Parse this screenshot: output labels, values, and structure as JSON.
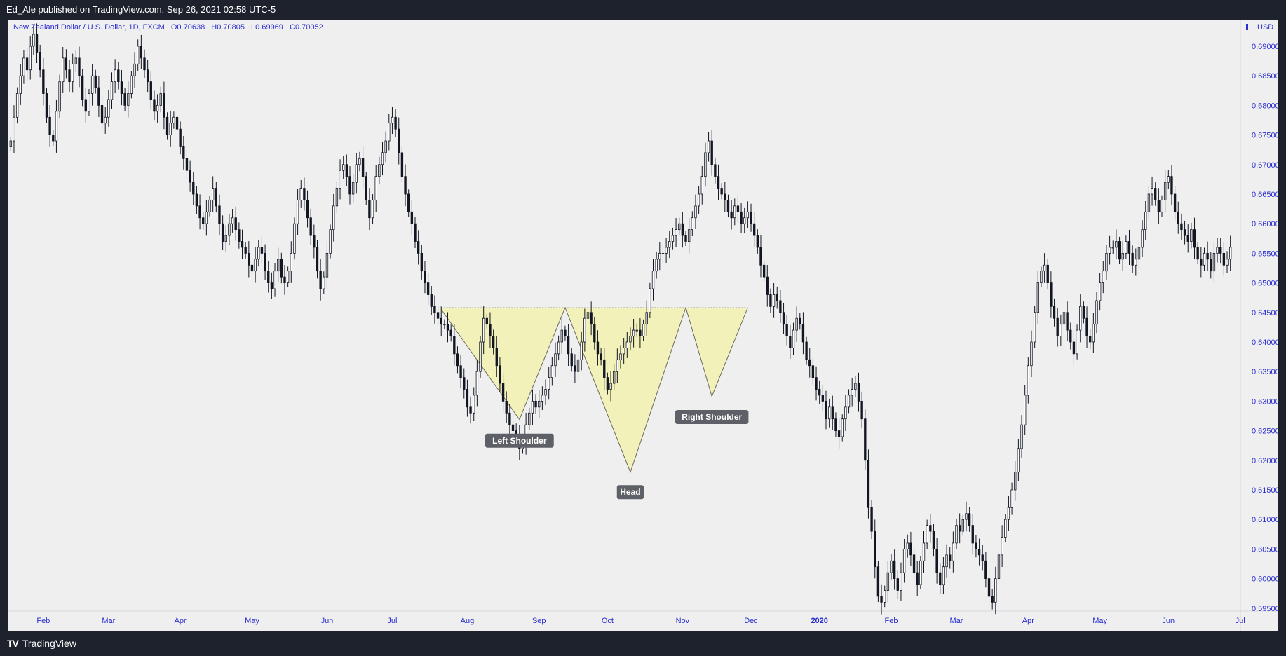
{
  "header": {
    "published": "Ed_Ale published on TradingView.com, Sep 26, 2021 02:58 UTC-5"
  },
  "legend": {
    "symbol": "New Zealand Dollar / U.S. Dollar, 1D, FXCM",
    "o_label": "O",
    "o_value": "0.70638",
    "h_label": "H",
    "h_value": "0.70805",
    "l_label": "L",
    "l_value": "0.69969",
    "c_label": "C",
    "c_value": "0.70052"
  },
  "currency": "USD",
  "footer": {
    "brand": "TradingView",
    "logo": "TV"
  },
  "colors": {
    "candle": "#131722",
    "pattern_fill": "#f2f1b9",
    "pattern_stroke": "#6b6b5a",
    "axis_text": "#2a2ecd",
    "label_bg": "#5d6066"
  },
  "chart_data": {
    "type": "candlestick",
    "instrument": "NZDUSD",
    "timeframe": "1D",
    "ylim": [
      0.5945,
      0.6945
    ],
    "y_ticks": [
      "0.69000",
      "0.68500",
      "0.68000",
      "0.67500",
      "0.67000",
      "0.66500",
      "0.66000",
      "0.65500",
      "0.65000",
      "0.64500",
      "0.64000",
      "0.63500",
      "0.63000",
      "0.62500",
      "0.62000",
      "0.61500",
      "0.61000",
      "0.60500",
      "0.60000",
      "0.59500"
    ],
    "x_ticks": [
      {
        "label": "Feb",
        "i": 10,
        "bold": false
      },
      {
        "label": "Mar",
        "i": 30,
        "bold": false
      },
      {
        "label": "Apr",
        "i": 52,
        "bold": false
      },
      {
        "label": "May",
        "i": 74,
        "bold": false
      },
      {
        "label": "Jun",
        "i": 97,
        "bold": false
      },
      {
        "label": "Jul",
        "i": 117,
        "bold": false
      },
      {
        "label": "Aug",
        "i": 140,
        "bold": false
      },
      {
        "label": "Sep",
        "i": 162,
        "bold": false
      },
      {
        "label": "Oct",
        "i": 183,
        "bold": false
      },
      {
        "label": "Nov",
        "i": 206,
        "bold": false
      },
      {
        "label": "Dec",
        "i": 227,
        "bold": false
      },
      {
        "label": "2020",
        "i": 248,
        "bold": true
      },
      {
        "label": "Feb",
        "i": 270,
        "bold": false
      },
      {
        "label": "Mar",
        "i": 290,
        "bold": false
      },
      {
        "label": "Apr",
        "i": 312,
        "bold": false
      },
      {
        "label": "May",
        "i": 334,
        "bold": false
      },
      {
        "label": "Jun",
        "i": 355,
        "bold": false
      },
      {
        "label": "Jul",
        "i": 377,
        "bold": false
      },
      {
        "label": "Aug",
        "i": 400,
        "bold": false
      }
    ],
    "closes": [
      0.674,
      0.678,
      0.682,
      0.685,
      0.688,
      0.686,
      0.69,
      0.692,
      0.689,
      0.686,
      0.682,
      0.678,
      0.675,
      0.674,
      0.679,
      0.684,
      0.688,
      0.686,
      0.684,
      0.687,
      0.688,
      0.685,
      0.681,
      0.679,
      0.682,
      0.685,
      0.683,
      0.68,
      0.677,
      0.678,
      0.681,
      0.684,
      0.686,
      0.684,
      0.682,
      0.68,
      0.682,
      0.685,
      0.687,
      0.69,
      0.688,
      0.686,
      0.684,
      0.681,
      0.679,
      0.68,
      0.682,
      0.678,
      0.675,
      0.677,
      0.678,
      0.676,
      0.673,
      0.671,
      0.669,
      0.667,
      0.665,
      0.663,
      0.661,
      0.66,
      0.662,
      0.664,
      0.666,
      0.663,
      0.66,
      0.657,
      0.658,
      0.66,
      0.661,
      0.659,
      0.657,
      0.656,
      0.655,
      0.653,
      0.652,
      0.654,
      0.656,
      0.655,
      0.652,
      0.65,
      0.649,
      0.652,
      0.654,
      0.651,
      0.65,
      0.652,
      0.655,
      0.66,
      0.664,
      0.666,
      0.664,
      0.661,
      0.658,
      0.656,
      0.652,
      0.649,
      0.651,
      0.655,
      0.659,
      0.663,
      0.666,
      0.669,
      0.67,
      0.668,
      0.665,
      0.667,
      0.67,
      0.671,
      0.668,
      0.664,
      0.661,
      0.664,
      0.668,
      0.67,
      0.672,
      0.674,
      0.677,
      0.678,
      0.676,
      0.672,
      0.668,
      0.665,
      0.662,
      0.66,
      0.657,
      0.655,
      0.652,
      0.65,
      0.648,
      0.646,
      0.645,
      0.644,
      0.643,
      0.643,
      0.642,
      0.641,
      0.638,
      0.636,
      0.634,
      0.632,
      0.629,
      0.628,
      0.631,
      0.635,
      0.64,
      0.644,
      0.643,
      0.641,
      0.639,
      0.636,
      0.633,
      0.63,
      0.628,
      0.626,
      0.625,
      0.624,
      0.622,
      0.623,
      0.626,
      0.628,
      0.63,
      0.629,
      0.63,
      0.631,
      0.632,
      0.634,
      0.636,
      0.638,
      0.64,
      0.642,
      0.641,
      0.638,
      0.636,
      0.635,
      0.637,
      0.64,
      0.644,
      0.645,
      0.643,
      0.64,
      0.638,
      0.637,
      0.634,
      0.632,
      0.633,
      0.635,
      0.637,
      0.638,
      0.639,
      0.64,
      0.641,
      0.642,
      0.642,
      0.641,
      0.643,
      0.645,
      0.649,
      0.652,
      0.654,
      0.655,
      0.655,
      0.656,
      0.657,
      0.658,
      0.659,
      0.66,
      0.658,
      0.657,
      0.659,
      0.661,
      0.663,
      0.665,
      0.668,
      0.672,
      0.674,
      0.67,
      0.668,
      0.666,
      0.665,
      0.664,
      0.662,
      0.661,
      0.663,
      0.662,
      0.66,
      0.661,
      0.662,
      0.66,
      0.658,
      0.656,
      0.653,
      0.651,
      0.648,
      0.646,
      0.648,
      0.647,
      0.645,
      0.643,
      0.641,
      0.639,
      0.642,
      0.644,
      0.643,
      0.64,
      0.637,
      0.636,
      0.634,
      0.632,
      0.631,
      0.63,
      0.627,
      0.629,
      0.627,
      0.625,
      0.624,
      0.627,
      0.629,
      0.631,
      0.632,
      0.633,
      0.63,
      0.627,
      0.62,
      0.612,
      0.608,
      0.602,
      0.597,
      0.596,
      0.598,
      0.601,
      0.603,
      0.6,
      0.598,
      0.601,
      0.605,
      0.606,
      0.604,
      0.601,
      0.599,
      0.603,
      0.606,
      0.609,
      0.608,
      0.605,
      0.601,
      0.599,
      0.602,
      0.604,
      0.603,
      0.606,
      0.609,
      0.608,
      0.61,
      0.611,
      0.609,
      0.606,
      0.605,
      0.604,
      0.603,
      0.6,
      0.597,
      0.596,
      0.6,
      0.604,
      0.607,
      0.61,
      0.612,
      0.615,
      0.618,
      0.622,
      0.626,
      0.631,
      0.636,
      0.64,
      0.645,
      0.65,
      0.652,
      0.653,
      0.65,
      0.646,
      0.644,
      0.641,
      0.643,
      0.645,
      0.642,
      0.64,
      0.638,
      0.642,
      0.646,
      0.644,
      0.641,
      0.64,
      0.643,
      0.647,
      0.65,
      0.652,
      0.655,
      0.656,
      0.656,
      0.657,
      0.654,
      0.655,
      0.657,
      0.655,
      0.653,
      0.654,
      0.656,
      0.659,
      0.662,
      0.665,
      0.666,
      0.664,
      0.662,
      0.664,
      0.667,
      0.668,
      0.665,
      0.662,
      0.66,
      0.659,
      0.658,
      0.657,
      0.659,
      0.656,
      0.654,
      0.653,
      0.655,
      0.654,
      0.652,
      0.655,
      0.656,
      0.655,
      0.653,
      0.654,
      0.656
    ],
    "pattern": {
      "type": "inverse head and shoulders",
      "neckline": 0.6458,
      "start_i": 132,
      "end_i": 226,
      "points": [
        {
          "i": 132,
          "price": 0.6455
        },
        {
          "i": 156,
          "price": 0.6269
        },
        {
          "i": 170,
          "price": 0.6458
        },
        {
          "i": 190,
          "price": 0.618
        },
        {
          "i": 207,
          "price": 0.6458
        },
        {
          "i": 215,
          "price": 0.6308
        },
        {
          "i": 226,
          "price": 0.6458
        }
      ],
      "labels": [
        {
          "text": "Left Shoulder",
          "i": 156,
          "price": 0.6245
        },
        {
          "text": "Head",
          "i": 190,
          "price": 0.6158
        },
        {
          "text": "Right Shoulder",
          "i": 215,
          "price": 0.6285
        }
      ]
    }
  }
}
